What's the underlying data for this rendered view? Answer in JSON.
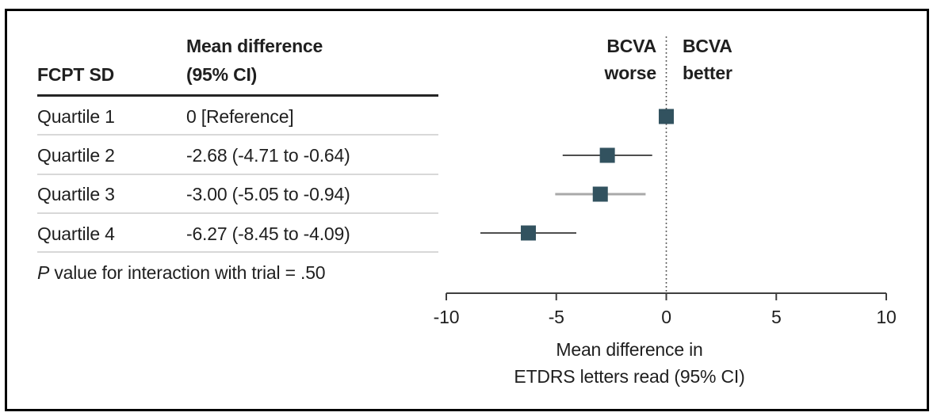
{
  "table": {
    "header": {
      "col1": "FCPT SD",
      "col2_line1": "Mean difference",
      "col2_line2": "(95% CI)"
    },
    "rows": [
      {
        "label": "Quartile 1",
        "value": "0 [Reference]"
      },
      {
        "label": "Quartile 2",
        "value": "-2.68 (-4.71 to -0.64)"
      },
      {
        "label": "Quartile 3",
        "value": "-3.00 (-5.05 to -0.94)"
      },
      {
        "label": "Quartile 4",
        "value": "-6.27 (-8.45 to -4.09)"
      }
    ],
    "footnote": {
      "italic": "P",
      "rest": " value for interaction with trial = .50"
    }
  },
  "chart_data": {
    "type": "forest",
    "categories": [
      "Quartile 1",
      "Quartile 2",
      "Quartile 3",
      "Quartile 4"
    ],
    "series": [
      {
        "name": "Mean difference (95% CI)",
        "means": [
          0,
          -2.68,
          -3.0,
          -6.27
        ],
        "ci_low": [
          null,
          -4.71,
          -5.05,
          -8.45
        ],
        "ci_high": [
          null,
          -0.64,
          -0.94,
          -4.09
        ]
      }
    ],
    "xlim": [
      -10,
      10
    ],
    "xticks": [
      -10,
      -5,
      0,
      5,
      10
    ],
    "xtick_labels": [
      "-10",
      "-5",
      "0",
      "5",
      "10"
    ],
    "reference_x": 0,
    "direction_labels": {
      "left_line1": "BCVA",
      "left_line2": "worse",
      "right_line1": "BCVA",
      "right_line2": "better"
    },
    "xlabel_line1": "Mean difference in",
    "xlabel_line2": "ETDRS letters read (95% CI)",
    "marker_color": "#32525f",
    "ci_line_colors": [
      null,
      "#4e4e4e",
      "#a9a9a9",
      "#4e4e4e"
    ],
    "reference_line_color": "#4a4a4a",
    "axis_color": "#3f3f3f",
    "legend_position": "none",
    "grid": false
  }
}
